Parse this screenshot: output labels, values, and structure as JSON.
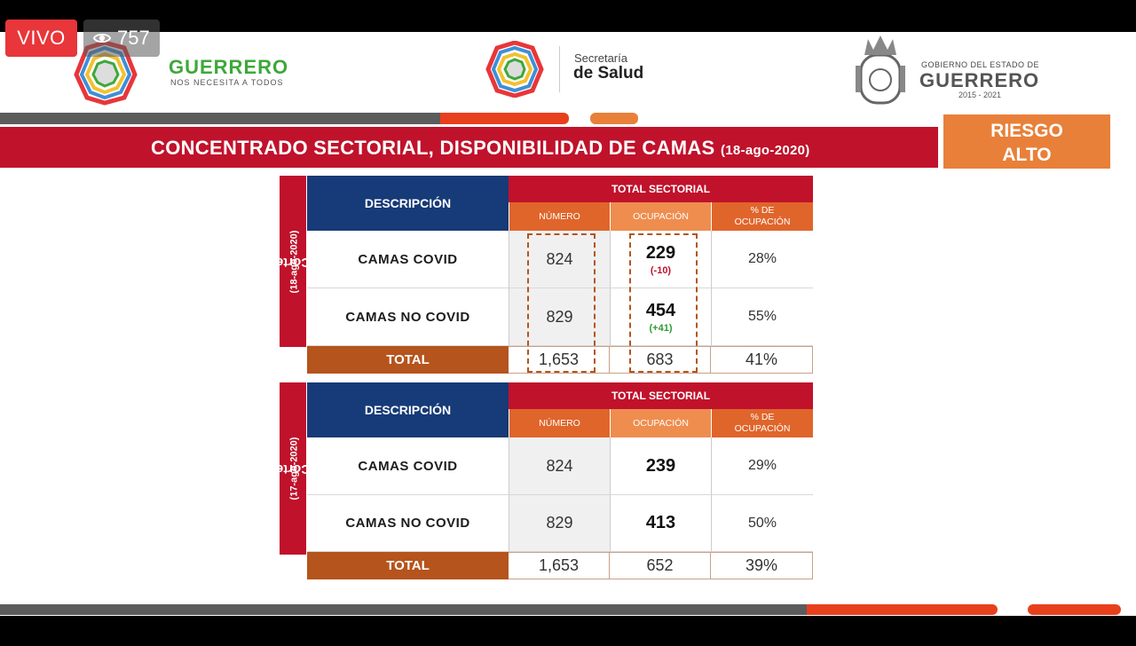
{
  "stream": {
    "live_label": "VIVO",
    "viewer_count": "757"
  },
  "header": {
    "left_brand": {
      "title": "GUERRERO",
      "subtitle": "NOS NECESITA A TODOS"
    },
    "center_brand": {
      "line1": "Secretaría",
      "line2": "de Salud"
    },
    "right_brand": {
      "line1": "GOBIERNO DEL ESTADO DE",
      "title": "GUERRERO",
      "years": "2015 - 2021"
    }
  },
  "title": {
    "main": "CONCENTRADO SECTORIAL, DISPONIBILIDAD DE CAMAS",
    "date": "(18-ago-2020)"
  },
  "risk": {
    "line1": "RIESGO",
    "line2": "ALTO"
  },
  "tables": [
    {
      "side_label": {
        "prefix": "Corte",
        "date": "(18-ago-2020)"
      },
      "header": {
        "descripcion": "DESCRIPCIÓN",
        "total_sectorial": "TOTAL SECTORIAL",
        "numero": "NÚMERO",
        "ocupacion": "OCUPACIÓN",
        "pct_ocupacion_1": "% DE",
        "pct_ocupacion_2": "OCUPACIÓN"
      },
      "rows": [
        {
          "label": "CAMAS COVID",
          "numero": "824",
          "ocupacion": "229",
          "delta": "(-10)",
          "pct": "28%"
        },
        {
          "label": "CAMAS NO COVID",
          "numero": "829",
          "ocupacion": "454",
          "delta": "(+41)",
          "pct": "55%"
        }
      ],
      "total": {
        "label": "TOTAL",
        "numero": "1,653",
        "ocupacion": "683",
        "pct": "41%"
      }
    },
    {
      "side_label": {
        "prefix": "Corte",
        "date": "(17-ago-2020)"
      },
      "header": {
        "descripcion": "DESCRIPCIÓN",
        "total_sectorial": "TOTAL SECTORIAL",
        "numero": "NÚMERO",
        "ocupacion": "OCUPACIÓN",
        "pct_ocupacion_1": "% DE",
        "pct_ocupacion_2": "OCUPACIÓN"
      },
      "rows": [
        {
          "label": "CAMAS COVID",
          "numero": "824",
          "ocupacion": "239",
          "pct": "29%"
        },
        {
          "label": "CAMAS NO COVID",
          "numero": "829",
          "ocupacion": "413",
          "pct": "50%"
        }
      ],
      "total": {
        "label": "TOTAL",
        "numero": "1,653",
        "ocupacion": "652",
        "pct": "39%"
      }
    }
  ],
  "colors": {
    "red": "#c0122b",
    "navy": "#173a78",
    "orange": "#e0652b",
    "risk_orange": "#e8803a",
    "green_brand": "#3ea83a"
  },
  "icons": {
    "viewers": "eye-icon"
  }
}
